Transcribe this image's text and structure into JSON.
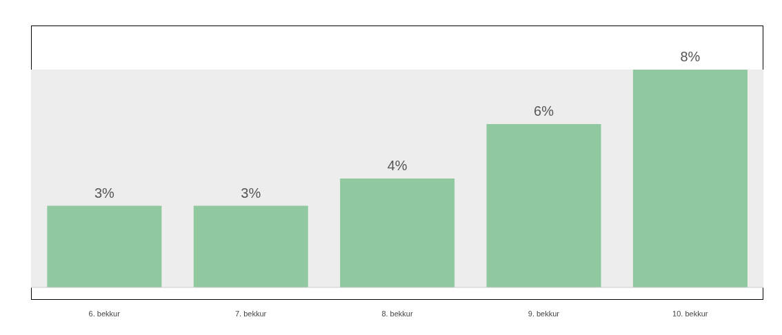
{
  "chart_data": {
    "type": "bar",
    "categories": [
      "6. bekkur",
      "7. bekkur",
      "8. bekkur",
      "9. bekkur",
      "10. bekkur"
    ],
    "values": [
      3,
      3,
      4,
      6,
      8
    ],
    "value_labels": [
      "3%",
      "3%",
      "4%",
      "6%",
      "8%"
    ],
    "color": "#90c9a0",
    "tick_labels": "x"
  }
}
